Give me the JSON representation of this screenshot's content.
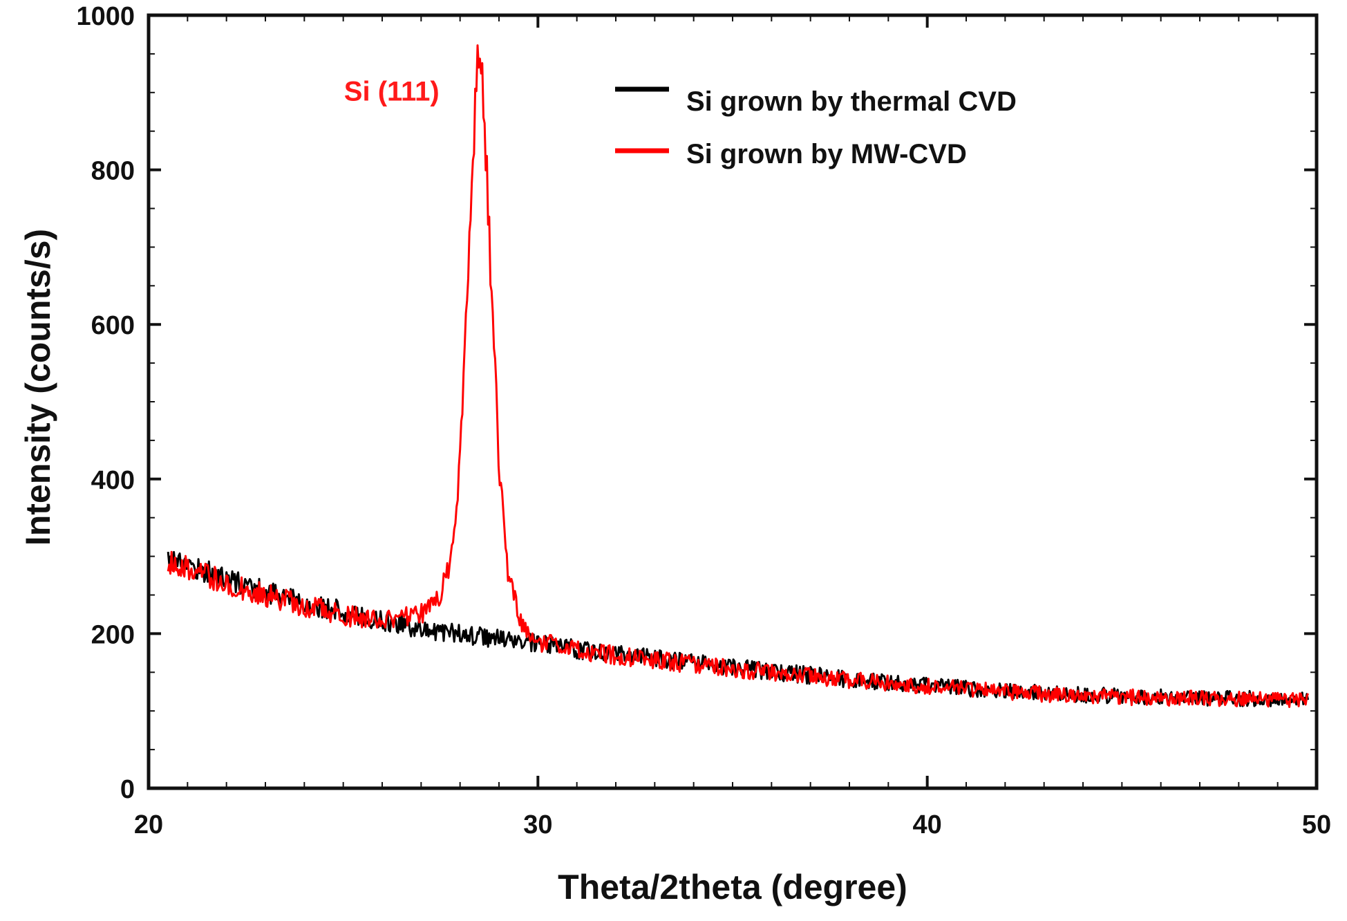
{
  "chart_data": {
    "type": "line",
    "title": "",
    "xlabel": "Theta/2theta (degree)",
    "ylabel": "Intensity (counts/s)",
    "xlim": [
      20,
      50
    ],
    "ylim": [
      0,
      1000
    ],
    "x_ticks": [
      20,
      30,
      40,
      50
    ],
    "y_ticks": [
      0,
      200,
      400,
      600,
      800,
      1000
    ],
    "grid": false,
    "legend_position": "top-right",
    "annotation": {
      "text": "Si (111)",
      "x": 28.0,
      "y": 930,
      "color": "#ff1a1a"
    },
    "series": [
      {
        "name": "Si grown by thermal CVD",
        "color": "#000000",
        "x": [
          20.5,
          21,
          22,
          23,
          24,
          25,
          26,
          27,
          28,
          29,
          30,
          31,
          32,
          33,
          34,
          35,
          36,
          37,
          38,
          39,
          40,
          41,
          42,
          43,
          44,
          45,
          46,
          47,
          48,
          49,
          49.8
        ],
        "y": [
          300,
          290,
          270,
          255,
          240,
          228,
          216,
          207,
          200,
          193,
          186,
          180,
          174,
          168,
          162,
          156,
          151,
          146,
          141,
          137,
          133,
          129,
          126,
          123,
          121,
          119,
          118,
          117,
          116,
          115,
          115
        ]
      },
      {
        "name": "Si grown by MW-CVD",
        "color": "#ff0000",
        "x": [
          20.5,
          21,
          22,
          23,
          24,
          25,
          26,
          27,
          27.5,
          27.8,
          28.0,
          28.2,
          28.4,
          28.5,
          28.6,
          28.8,
          29.0,
          29.2,
          29.5,
          30,
          31,
          32,
          33,
          34,
          35,
          36,
          37,
          38,
          39,
          40,
          41,
          42,
          43,
          44,
          45,
          46,
          47,
          48,
          49,
          49.8
        ],
        "y": [
          295,
          285,
          265,
          250,
          236,
          224,
          215,
          225,
          250,
          300,
          420,
          650,
          900,
          970,
          900,
          650,
          420,
          290,
          220,
          190,
          178,
          172,
          166,
          160,
          155,
          150,
          145,
          140,
          136,
          132,
          128,
          125,
          122,
          120,
          118,
          117,
          116,
          115,
          114,
          114
        ]
      }
    ]
  }
}
